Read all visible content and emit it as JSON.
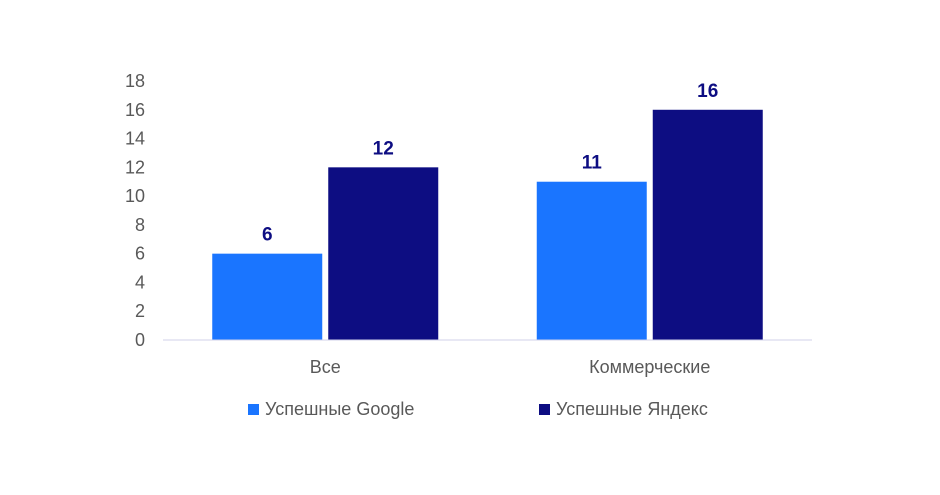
{
  "chart_data": {
    "type": "bar",
    "categories": [
      "Все",
      "Коммерческие"
    ],
    "series": [
      {
        "name": "Успешные Google",
        "values": [
          6,
          11
        ],
        "color": "#1a75ff"
      },
      {
        "name": "Успешные Яндекс",
        "values": [
          12,
          16
        ],
        "color": "#0d0d82"
      }
    ],
    "ylim": [
      0,
      18
    ],
    "yticks": [
      0,
      2,
      4,
      6,
      8,
      10,
      12,
      14,
      16,
      18
    ],
    "grid": false,
    "legend_position": "bottom",
    "data_labels": true
  }
}
